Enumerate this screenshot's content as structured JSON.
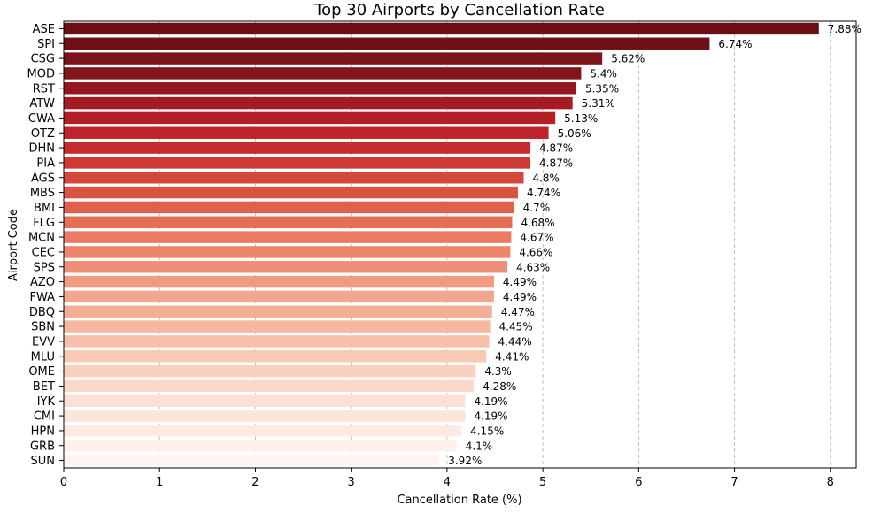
{
  "chart_data": {
    "type": "bar",
    "orientation": "horizontal",
    "title": "Top 30 Airports by Cancellation Rate",
    "xlabel": "Cancellation Rate (%)",
    "ylabel": "Airport Code",
    "xlim": [
      0,
      8.27
    ],
    "xticks": [
      0,
      1,
      2,
      3,
      4,
      5,
      6,
      7,
      8
    ],
    "grid": "x-dashed",
    "categories": [
      "ASE",
      "SPI",
      "CSG",
      "MOD",
      "RST",
      "ATW",
      "CWA",
      "OTZ",
      "DHN",
      "PIA",
      "AGS",
      "MBS",
      "BMI",
      "FLG",
      "MCN",
      "CEC",
      "SPS",
      "AZO",
      "FWA",
      "DBQ",
      "SBN",
      "EVV",
      "MLU",
      "OME",
      "BET",
      "IYK",
      "CMI",
      "HPN",
      "GRB",
      "SUN"
    ],
    "values": [
      7.88,
      6.74,
      5.62,
      5.4,
      5.35,
      5.31,
      5.13,
      5.06,
      4.87,
      4.87,
      4.8,
      4.74,
      4.7,
      4.68,
      4.67,
      4.66,
      4.63,
      4.49,
      4.49,
      4.47,
      4.45,
      4.44,
      4.41,
      4.3,
      4.28,
      4.19,
      4.19,
      4.15,
      4.1,
      3.92
    ],
    "value_labels": [
      "7.88%",
      "6.74%",
      "5.62%",
      "5.4%",
      "5.35%",
      "5.31%",
      "5.13%",
      "5.06%",
      "4.87%",
      "4.87%",
      "4.8%",
      "4.74%",
      "4.7%",
      "4.68%",
      "4.67%",
      "4.66%",
      "4.63%",
      "4.49%",
      "4.49%",
      "4.47%",
      "4.45%",
      "4.44%",
      "4.41%",
      "4.3%",
      "4.28%",
      "4.19%",
      "4.19%",
      "4.15%",
      "4.1%",
      "3.92%"
    ],
    "colors": [
      "#6a0d17",
      "#6f1019",
      "#7c131b",
      "#85151d",
      "#94171f",
      "#a51b22",
      "#b21f26",
      "#c0242a",
      "#c72b2e",
      "#cf3a34",
      "#d5463a",
      "#dd5341",
      "#e2604b",
      "#e66d56",
      "#ea7b62",
      "#ed866c",
      "#ee9075",
      "#f09b81",
      "#f2a68d",
      "#f3ae96",
      "#f5b8a1",
      "#f7c0aa",
      "#f8c9b5",
      "#f9d1c0",
      "#fad9c8",
      "#fbe0d3",
      "#fce6dc",
      "#fdeae2",
      "#fef0ea",
      "#fff4ef"
    ]
  }
}
